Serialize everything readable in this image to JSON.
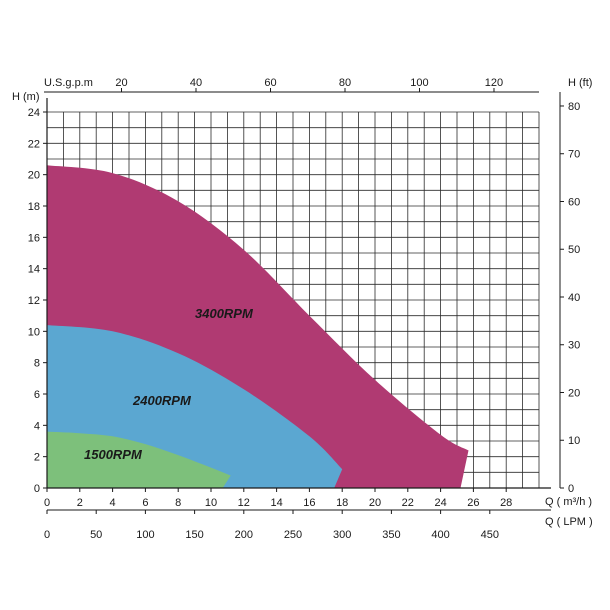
{
  "chart_data": {
    "type": "area",
    "title": "",
    "x_axis_bottom": {
      "label": "Q ( m³/h )",
      "unit": "m³/h",
      "range": [
        0,
        30
      ],
      "ticks": [
        0,
        2,
        4,
        6,
        8,
        10,
        12,
        14,
        16,
        18,
        20,
        22,
        24,
        26,
        28
      ]
    },
    "x_axis_bottom2": {
      "label": "Q ( LPM )",
      "unit": "LPM",
      "ticks": [
        0,
        50,
        100,
        150,
        200,
        250,
        300,
        350,
        400,
        450
      ]
    },
    "x_axis_top": {
      "label": "U.S.g.p.m",
      "unit": "U.S.g.p.m",
      "ticks": [
        20,
        40,
        60,
        80,
        100,
        120
      ]
    },
    "y_axis_left": {
      "label": "H (m)",
      "unit": "m",
      "range": [
        0,
        24
      ],
      "ticks": [
        0,
        2,
        4,
        6,
        8,
        10,
        12,
        14,
        16,
        18,
        20,
        22,
        24
      ]
    },
    "y_axis_right": {
      "label": "H (ft)",
      "unit": "ft",
      "ticks": [
        0,
        10,
        20,
        30,
        40,
        50,
        60,
        70,
        80
      ]
    },
    "grid": true,
    "series": [
      {
        "name": "3400RPM",
        "color": "#b03a72",
        "x": [
          0,
          4,
          8,
          12,
          16,
          20,
          24,
          25.7
        ],
        "y": [
          20.6,
          20.1,
          18.3,
          15.2,
          11.0,
          6.9,
          3.4,
          2.4
        ]
      },
      {
        "name": "2400RPM",
        "color": "#5ba7d1",
        "x": [
          0,
          4,
          8,
          12,
          16,
          18
        ],
        "y": [
          10.4,
          10.0,
          8.6,
          6.3,
          3.3,
          1.2
        ]
      },
      {
        "name": "1500RPM",
        "color": "#7dc07b",
        "x": [
          0,
          2,
          4,
          6,
          8,
          10,
          11.2
        ],
        "y": [
          3.6,
          3.5,
          3.3,
          2.8,
          2.1,
          1.3,
          0.8
        ]
      }
    ]
  }
}
